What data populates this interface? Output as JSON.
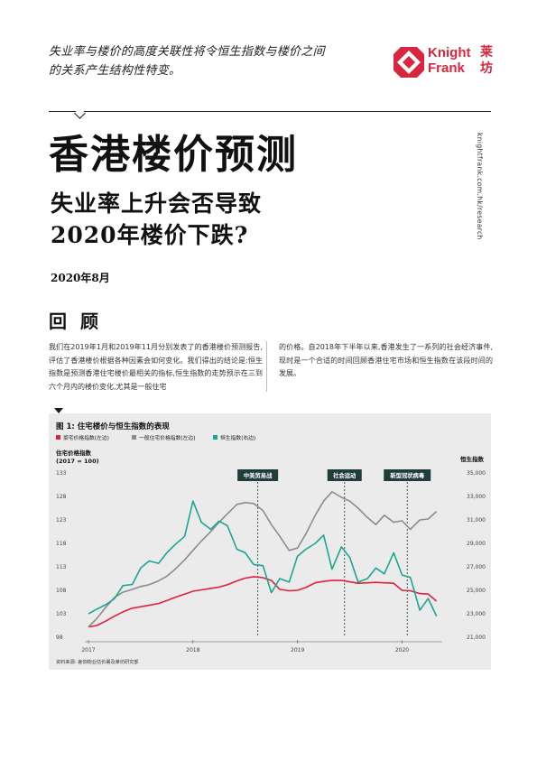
{
  "intro": {
    "line1": "失业率与楼价的高度关联性将令恒生指数与楼价之间",
    "line2": "的关系产生结构性特变。"
  },
  "logo": {
    "en_line1": "Knight",
    "en_line2": "Frank",
    "cn_line1": "莱",
    "cn_line2": "坊",
    "color": "#d7263d"
  },
  "side_url": "knightfrank.com.hk/research",
  "title": "香港楼价预测",
  "subtitle": {
    "line1": "失业率上升会否导致",
    "line2": "2020年楼价下跌?"
  },
  "date": "2020年8月",
  "section_heading": "回 顾",
  "body": {
    "col1": "我们在2019年1月和2019年11月分别发表了的香港楼价预测报告,评估了香港楼价根据各种因素会如何变化。我们得出的结论是:恒生指数是预测香港住宅楼价最相关的指标,恒生指数的走势预示在三到六个月内的楼价变化,尤其是一般住宅",
    "col2": "的价格。自2018年下半年以来,香港发生了一系列的社会经济事件,现时是一个合适的时间回顾香港住宅市场和恒生指数在该段时间的发展。"
  },
  "chart_data": {
    "type": "line",
    "title": "图 1: 住宅楼价与恒生指数的表现",
    "legend": [
      {
        "name": "豪宅价格指数(左边)",
        "color": "#e0203a"
      },
      {
        "name": "一般住宅价格指数(左边)",
        "color": "#8c8c8c"
      },
      {
        "name": "恒生指数(右边)",
        "color": "#1aa595"
      }
    ],
    "left_axis_label_line1": "住宅价格指数",
    "left_axis_label_line2": "(2017 = 100)",
    "right_axis_label": "恒生指数",
    "left_ticks": [
      "133",
      "128",
      "123",
      "118",
      "113",
      "108",
      "103",
      "98"
    ],
    "right_ticks": [
      "35,000",
      "33,000",
      "31,000",
      "29,000",
      "27,000",
      "25,000",
      "23,000",
      "21,000"
    ],
    "x_ticks": [
      "2017",
      "2018",
      "2019",
      "2020"
    ],
    "ylim_left": [
      98,
      133
    ],
    "ylim_right": [
      21000,
      35000
    ],
    "annotations": [
      "中美贸易战",
      "社会运动",
      "新型冠状病毒"
    ],
    "annotation_x": [
      2018.62,
      2019.45,
      2020.05
    ],
    "x_range": [
      2017,
      2020.35
    ],
    "series": [
      {
        "name": "豪宅价格指数(左边)",
        "axis": "left",
        "color": "#e0203a",
        "points": [
          [
            2017.0,
            100.2
          ],
          [
            2017.08,
            100.5
          ],
          [
            2017.17,
            101.5
          ],
          [
            2017.25,
            102.5
          ],
          [
            2017.33,
            103.4
          ],
          [
            2017.42,
            104.2
          ],
          [
            2017.5,
            104.5
          ],
          [
            2017.58,
            104.8
          ],
          [
            2017.67,
            105.2
          ],
          [
            2017.75,
            105.8
          ],
          [
            2017.83,
            106.5
          ],
          [
            2017.92,
            107.2
          ],
          [
            2018.0,
            107.8
          ],
          [
            2018.08,
            108.1
          ],
          [
            2018.17,
            108.4
          ],
          [
            2018.25,
            108.7
          ],
          [
            2018.33,
            109.2
          ],
          [
            2018.42,
            110.0
          ],
          [
            2018.5,
            110.6
          ],
          [
            2018.58,
            110.9
          ],
          [
            2018.67,
            110.7
          ],
          [
            2018.75,
            110.1
          ],
          [
            2018.83,
            108.2
          ],
          [
            2018.92,
            107.9
          ],
          [
            2019.0,
            108.0
          ],
          [
            2019.08,
            108.6
          ],
          [
            2019.17,
            109.6
          ],
          [
            2019.25,
            109.9
          ],
          [
            2019.33,
            110.1
          ],
          [
            2019.42,
            110.1
          ],
          [
            2019.5,
            109.8
          ],
          [
            2019.58,
            109.5
          ],
          [
            2019.67,
            109.6
          ],
          [
            2019.75,
            109.7
          ],
          [
            2019.83,
            109.6
          ],
          [
            2019.92,
            109.5
          ],
          [
            2020.0,
            108.0
          ],
          [
            2020.08,
            107.9
          ],
          [
            2020.17,
            107.3
          ],
          [
            2020.25,
            107.2
          ],
          [
            2020.33,
            105.7
          ]
        ]
      },
      {
        "name": "一般住宅价格指数(左边)",
        "axis": "left",
        "color": "#8c8c8c",
        "points": [
          [
            2017.0,
            100.2
          ],
          [
            2017.08,
            102.0
          ],
          [
            2017.17,
            104.5
          ],
          [
            2017.25,
            106.5
          ],
          [
            2017.33,
            107.6
          ],
          [
            2017.42,
            108.2
          ],
          [
            2017.5,
            108.8
          ],
          [
            2017.58,
            109.2
          ],
          [
            2017.67,
            110.0
          ],
          [
            2017.75,
            111.0
          ],
          [
            2017.83,
            112.5
          ],
          [
            2017.92,
            114.5
          ],
          [
            2018.0,
            116.5
          ],
          [
            2018.08,
            118.5
          ],
          [
            2018.17,
            120.5
          ],
          [
            2018.25,
            122.5
          ],
          [
            2018.33,
            124.3
          ],
          [
            2018.42,
            126.3
          ],
          [
            2018.5,
            126.7
          ],
          [
            2018.58,
            126.5
          ],
          [
            2018.67,
            125.0
          ],
          [
            2018.75,
            122.0
          ],
          [
            2018.83,
            119.5
          ],
          [
            2018.92,
            116.5
          ],
          [
            2019.0,
            117.0
          ],
          [
            2019.08,
            120.0
          ],
          [
            2019.17,
            124.0
          ],
          [
            2019.25,
            127.0
          ],
          [
            2019.33,
            129.0
          ],
          [
            2019.42,
            127.8
          ],
          [
            2019.5,
            127.0
          ],
          [
            2019.58,
            125.5
          ],
          [
            2019.67,
            123.5
          ],
          [
            2019.75,
            122.0
          ],
          [
            2019.83,
            124.0
          ],
          [
            2019.92,
            122.5
          ],
          [
            2020.0,
            122.8
          ],
          [
            2020.08,
            121.0
          ],
          [
            2020.17,
            123.0
          ],
          [
            2020.25,
            123.2
          ],
          [
            2020.33,
            124.8
          ]
        ]
      },
      {
        "name": "恒生指数(右边)",
        "axis": "right",
        "color": "#1aa595",
        "points": [
          [
            2017.0,
            23000
          ],
          [
            2017.08,
            23400
          ],
          [
            2017.17,
            23800
          ],
          [
            2017.25,
            24300
          ],
          [
            2017.33,
            25400
          ],
          [
            2017.42,
            25500
          ],
          [
            2017.5,
            26900
          ],
          [
            2017.58,
            27500
          ],
          [
            2017.67,
            27300
          ],
          [
            2017.75,
            28200
          ],
          [
            2017.83,
            28900
          ],
          [
            2017.92,
            29600
          ],
          [
            2018.0,
            32600
          ],
          [
            2018.08,
            30800
          ],
          [
            2018.17,
            30200
          ],
          [
            2018.25,
            30900
          ],
          [
            2018.33,
            30500
          ],
          [
            2018.42,
            28500
          ],
          [
            2018.5,
            28200
          ],
          [
            2018.58,
            27200
          ],
          [
            2018.67,
            27100
          ],
          [
            2018.75,
            24800
          ],
          [
            2018.83,
            26000
          ],
          [
            2018.92,
            25700
          ],
          [
            2019.0,
            27900
          ],
          [
            2019.08,
            28500
          ],
          [
            2019.17,
            29000
          ],
          [
            2019.25,
            29700
          ],
          [
            2019.33,
            26800
          ],
          [
            2019.42,
            28700
          ],
          [
            2019.5,
            27800
          ],
          [
            2019.58,
            25700
          ],
          [
            2019.67,
            26000
          ],
          [
            2019.75,
            26900
          ],
          [
            2019.83,
            26400
          ],
          [
            2019.92,
            28200
          ],
          [
            2020.0,
            26300
          ],
          [
            2020.08,
            26100
          ],
          [
            2020.17,
            23300
          ],
          [
            2020.25,
            24300
          ],
          [
            2020.33,
            22800
          ]
        ]
      }
    ],
    "source": "资料来源: 差饷物业估价署及莱坊研究部"
  }
}
